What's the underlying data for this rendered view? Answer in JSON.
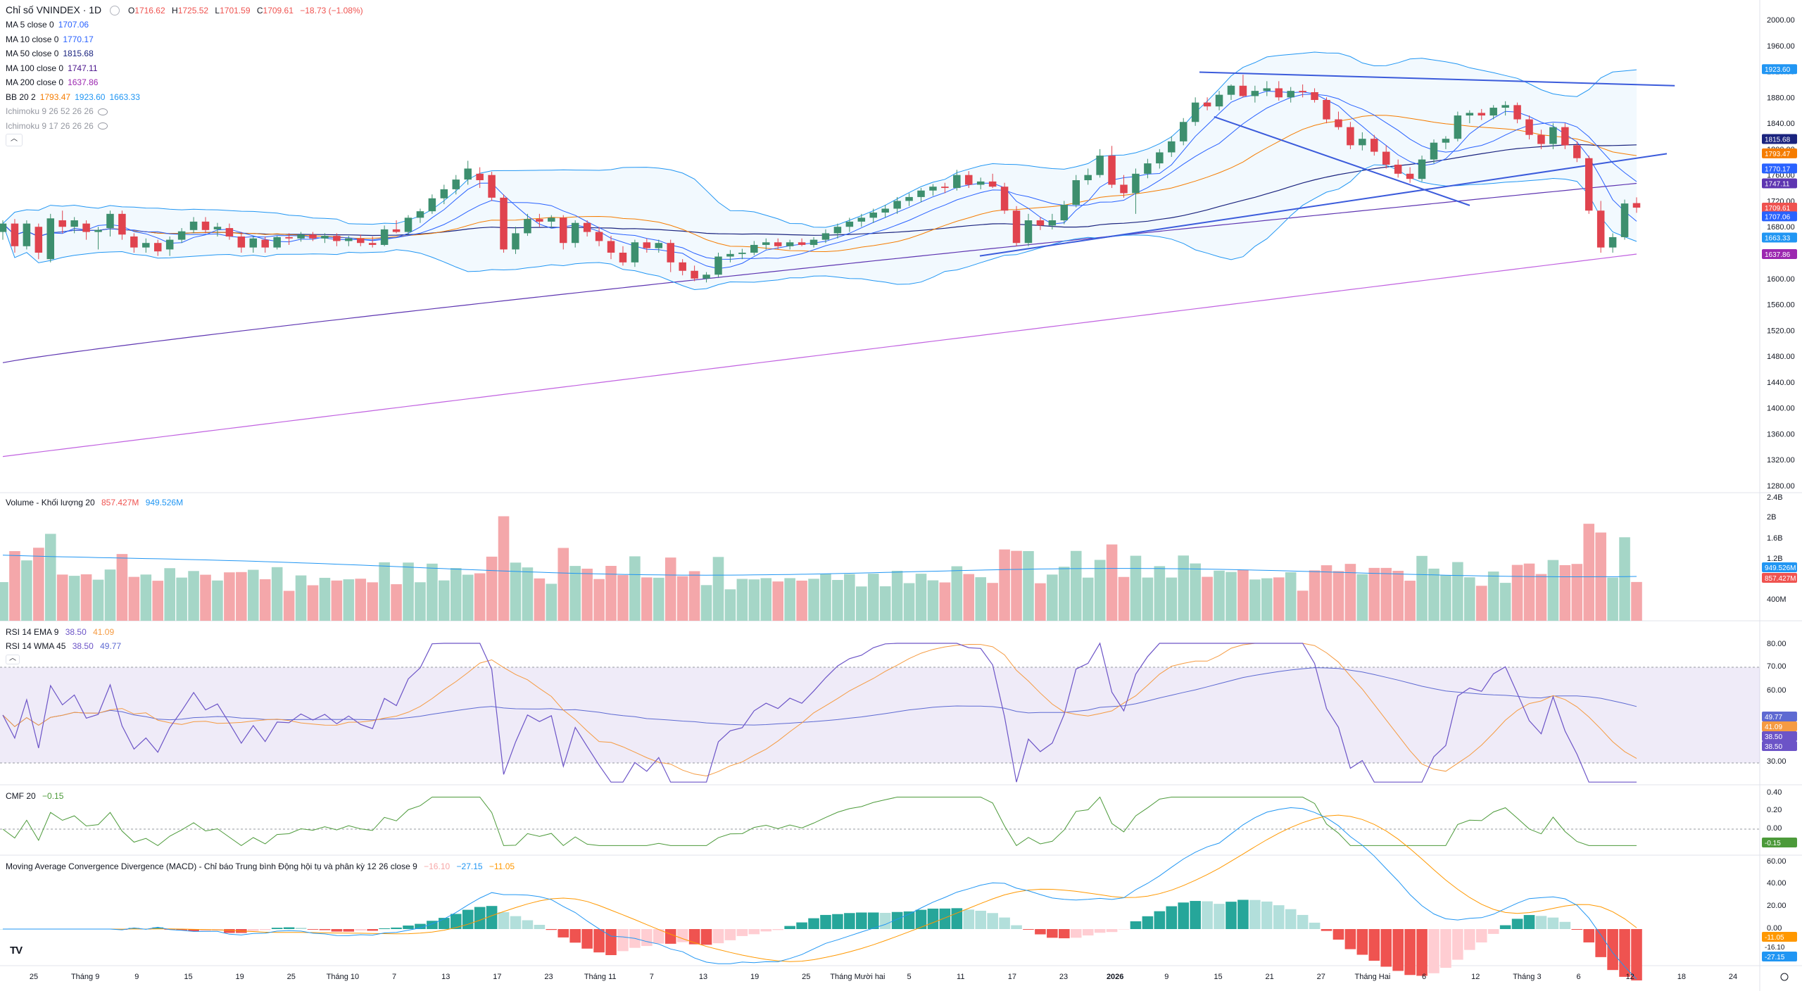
{
  "header": {
    "symbol_title": "Chỉ số VNINDEX · 1D",
    "open_label": "O",
    "open": "1716.62",
    "high_label": "H",
    "high": "1725.52",
    "low_label": "L",
    "low": "1701.59",
    "close_label": "C",
    "close": "1709.61",
    "change": "−18.73 (−1.08%)"
  },
  "indicators": [
    {
      "name": "MA 5 close 0",
      "values": [
        "1707.06"
      ],
      "colors": [
        "#2962ff"
      ]
    },
    {
      "name": "MA 10 close 0",
      "values": [
        "1770.17"
      ],
      "colors": [
        "#2962ff"
      ]
    },
    {
      "name": "MA 50 close 0",
      "values": [
        "1815.68"
      ],
      "colors": [
        "#1a237e"
      ]
    },
    {
      "name": "MA 100 close 0",
      "values": [
        "1747.11"
      ],
      "colors": [
        "#4a148c"
      ]
    },
    {
      "name": "MA 200 close 0",
      "values": [
        "1637.86"
      ],
      "colors": [
        "#9c27b0"
      ]
    },
    {
      "name": "BB 20 2",
      "values": [
        "1793.47",
        "1923.60",
        "1663.33"
      ],
      "colors": [
        "#f57c00",
        "#2196f3",
        "#2196f3"
      ]
    },
    {
      "name": "Ichimoku 9 26 52 26 26",
      "values": [],
      "colors": [],
      "hidden": true
    },
    {
      "name": "Ichimoku 9 17 26 26 26",
      "values": [],
      "colors": [],
      "hidden": true
    }
  ],
  "panes": {
    "volume": {
      "label": "Volume - Khối lượng 20",
      "v1": "857.427M",
      "v2": "949.526M"
    },
    "rsi1": {
      "label": "RSI 14 EMA 9",
      "v1": "38.50",
      "v2": "41.09"
    },
    "rsi2": {
      "label": "RSI 14 WMA 45",
      "v1": "38.50",
      "v2": "49.77"
    },
    "cmf": {
      "label": "CMF 20",
      "v1": "−0.15"
    },
    "macd": {
      "label": "Moving Average Convergence Divergence (MACD) - Chỉ báo Trung bình Động hội tụ và phân kỳ 12 26 close 9",
      "v1": "−16.10",
      "v2": "−27.15",
      "v3": "−11.05"
    }
  },
  "colors": {
    "up": "#26a69a",
    "down": "#ef5350",
    "up_candle": "#3d8f6e",
    "down_candle": "#e0434e",
    "ma5": "#2962ff",
    "ma10": "#2962ff",
    "ma50": "#1a237e",
    "ma100": "#5e35b1",
    "ma200": "#c162e0",
    "bb_basis": "#f57c00",
    "bb_band": "#2196f3",
    "trend": "#3b5bdb",
    "rsi": "#6c54c7",
    "rsi_ma": "#f59b42",
    "rsi_wma": "#5e6ad2",
    "cmf": "#4c9a3a",
    "macd": "#2196f3",
    "signal": "#ff9800"
  },
  "price_axis": {
    "labels": [
      "2000.00",
      "1960.00",
      "1920.00",
      "1880.00",
      "1840.00",
      "1800.00",
      "1760.00",
      "1720.00",
      "1680.00",
      "1640.00",
      "1600.00",
      "1560.00",
      "1520.00",
      "1480.00",
      "1440.00",
      "1400.00",
      "1360.00",
      "1320.00",
      "1280.00"
    ],
    "tags": [
      {
        "text": "1923.60",
        "bg": "#2196f3"
      },
      {
        "text": "1815.68",
        "bg": "#1a237e"
      },
      {
        "text": "1793.47",
        "bg": "#f57c00"
      },
      {
        "text": "1770.17",
        "bg": "#2962ff"
      },
      {
        "text": "1747.11",
        "bg": "#5e35b1"
      },
      {
        "text": "1709.61",
        "bg": "#ef5350"
      },
      {
        "text": "1707.06",
        "bg": "#2962ff"
      },
      {
        "text": "1663.33",
        "bg": "#2196f3"
      },
      {
        "text": "1637.86",
        "bg": "#9c27b0"
      }
    ]
  },
  "volume_axis": {
    "labels": [
      "2.4B",
      "2B",
      "1.6B",
      "1.2B",
      "400M"
    ],
    "tags": [
      {
        "text": "949.526M",
        "bg": "#2196f3"
      },
      {
        "text": "857.427M",
        "bg": "#ef5350"
      }
    ]
  },
  "rsi_axis": {
    "labels": [
      "80.00",
      "70.00",
      "60.00",
      "30.00"
    ],
    "tags": [
      {
        "text": "49.77",
        "bg": "#5e6ad2"
      },
      {
        "text": "41.09",
        "bg": "#f59b42"
      },
      {
        "text": "38.50",
        "bg": "#6c54c7"
      },
      {
        "text": "38.50",
        "bg": "#6c54c7"
      }
    ]
  },
  "cmf_axis": {
    "labels": [
      "0.40",
      "0.20",
      "0.00"
    ],
    "tags": [
      {
        "text": "-0.15",
        "bg": "#4c9a3a"
      }
    ]
  },
  "macd_axis": {
    "labels": [
      "60.00",
      "40.00",
      "20.00",
      "0.00"
    ],
    "tags": [
      {
        "text": "-11.05",
        "bg": "#ff9800"
      },
      {
        "text": "-16.10",
        "bg": "#ffffff"
      },
      {
        "text": "-27.15",
        "bg": "#2196f3"
      }
    ]
  },
  "time_axis": {
    "labels": [
      "25",
      "Tháng 9",
      "9",
      "15",
      "19",
      "25",
      "Tháng 10",
      "7",
      "13",
      "17",
      "23",
      "Tháng 11",
      "7",
      "13",
      "19",
      "25",
      "Tháng Mười hai",
      "5",
      "11",
      "17",
      "23",
      "2026",
      "9",
      "15",
      "21",
      "27",
      "Tháng Hai",
      "6",
      "12",
      "Tháng 3",
      "6",
      "12",
      "18",
      "24"
    ],
    "bold": [
      "2026"
    ]
  },
  "chart_data": {
    "type": "candlestick",
    "title": "Chỉ số VNINDEX · 1D",
    "ylim": [
      1240,
      2020
    ],
    "candles": [
      {
        "o": 1672,
        "h": 1690,
        "l": 1660,
        "c": 1685
      },
      {
        "o": 1685,
        "h": 1692,
        "l": 1640,
        "c": 1650
      },
      {
        "o": 1650,
        "h": 1690,
        "l": 1645,
        "c": 1685
      },
      {
        "o": 1680,
        "h": 1685,
        "l": 1630,
        "c": 1640
      },
      {
        "o": 1630,
        "h": 1700,
        "l": 1625,
        "c": 1693
      },
      {
        "o": 1690,
        "h": 1705,
        "l": 1670,
        "c": 1680
      },
      {
        "o": 1680,
        "h": 1695,
        "l": 1670,
        "c": 1690
      },
      {
        "o": 1685,
        "h": 1690,
        "l": 1660,
        "c": 1672
      },
      {
        "o": 1672,
        "h": 1680,
        "l": 1645,
        "c": 1675
      },
      {
        "o": 1678,
        "h": 1705,
        "l": 1665,
        "c": 1700
      },
      {
        "o": 1700,
        "h": 1705,
        "l": 1660,
        "c": 1668
      },
      {
        "o": 1665,
        "h": 1670,
        "l": 1640,
        "c": 1648
      },
      {
        "o": 1648,
        "h": 1662,
        "l": 1640,
        "c": 1655
      },
      {
        "o": 1655,
        "h": 1660,
        "l": 1635,
        "c": 1642
      },
      {
        "o": 1645,
        "h": 1665,
        "l": 1635,
        "c": 1660
      },
      {
        "o": 1660,
        "h": 1678,
        "l": 1655,
        "c": 1673
      },
      {
        "o": 1675,
        "h": 1695,
        "l": 1670,
        "c": 1688
      },
      {
        "o": 1688,
        "h": 1695,
        "l": 1670,
        "c": 1675
      },
      {
        "o": 1676,
        "h": 1686,
        "l": 1665,
        "c": 1680
      },
      {
        "o": 1678,
        "h": 1685,
        "l": 1660,
        "c": 1665
      },
      {
        "o": 1665,
        "h": 1672,
        "l": 1640,
        "c": 1648
      },
      {
        "o": 1648,
        "h": 1666,
        "l": 1640,
        "c": 1662
      },
      {
        "o": 1660,
        "h": 1665,
        "l": 1640,
        "c": 1648
      },
      {
        "o": 1648,
        "h": 1666,
        "l": 1645,
        "c": 1664
      },
      {
        "o": 1664,
        "h": 1670,
        "l": 1652,
        "c": 1662
      },
      {
        "o": 1662,
        "h": 1672,
        "l": 1657,
        "c": 1668
      },
      {
        "o": 1668,
        "h": 1672,
        "l": 1658,
        "c": 1662
      },
      {
        "o": 1662,
        "h": 1670,
        "l": 1655,
        "c": 1666
      },
      {
        "o": 1666,
        "h": 1670,
        "l": 1650,
        "c": 1658
      },
      {
        "o": 1658,
        "h": 1666,
        "l": 1650,
        "c": 1662
      },
      {
        "o": 1662,
        "h": 1668,
        "l": 1650,
        "c": 1655
      },
      {
        "o": 1655,
        "h": 1665,
        "l": 1648,
        "c": 1652
      },
      {
        "o": 1652,
        "h": 1682,
        "l": 1650,
        "c": 1676
      },
      {
        "o": 1676,
        "h": 1690,
        "l": 1670,
        "c": 1672
      },
      {
        "o": 1672,
        "h": 1698,
        "l": 1668,
        "c": 1694
      },
      {
        "o": 1694,
        "h": 1708,
        "l": 1686,
        "c": 1704
      },
      {
        "o": 1704,
        "h": 1730,
        "l": 1700,
        "c": 1724
      },
      {
        "o": 1724,
        "h": 1745,
        "l": 1715,
        "c": 1738
      },
      {
        "o": 1738,
        "h": 1760,
        "l": 1730,
        "c": 1753
      },
      {
        "o": 1753,
        "h": 1782,
        "l": 1745,
        "c": 1770
      },
      {
        "o": 1762,
        "h": 1772,
        "l": 1740,
        "c": 1752
      },
      {
        "o": 1760,
        "h": 1765,
        "l": 1720,
        "c": 1725
      },
      {
        "o": 1725,
        "h": 1730,
        "l": 1640,
        "c": 1645
      },
      {
        "o": 1645,
        "h": 1680,
        "l": 1638,
        "c": 1670
      },
      {
        "o": 1670,
        "h": 1700,
        "l": 1666,
        "c": 1692
      },
      {
        "o": 1692,
        "h": 1700,
        "l": 1680,
        "c": 1688
      },
      {
        "o": 1688,
        "h": 1698,
        "l": 1678,
        "c": 1694
      },
      {
        "o": 1694,
        "h": 1698,
        "l": 1645,
        "c": 1655
      },
      {
        "o": 1655,
        "h": 1690,
        "l": 1648,
        "c": 1686
      },
      {
        "o": 1686,
        "h": 1690,
        "l": 1665,
        "c": 1672
      },
      {
        "o": 1672,
        "h": 1680,
        "l": 1650,
        "c": 1658
      },
      {
        "o": 1658,
        "h": 1666,
        "l": 1630,
        "c": 1640
      },
      {
        "o": 1640,
        "h": 1650,
        "l": 1620,
        "c": 1625
      },
      {
        "o": 1625,
        "h": 1660,
        "l": 1618,
        "c": 1656
      },
      {
        "o": 1656,
        "h": 1662,
        "l": 1640,
        "c": 1647
      },
      {
        "o": 1647,
        "h": 1660,
        "l": 1640,
        "c": 1655
      },
      {
        "o": 1655,
        "h": 1660,
        "l": 1610,
        "c": 1625
      },
      {
        "o": 1625,
        "h": 1630,
        "l": 1605,
        "c": 1612
      },
      {
        "o": 1612,
        "h": 1620,
        "l": 1596,
        "c": 1600
      },
      {
        "o": 1600,
        "h": 1610,
        "l": 1594,
        "c": 1606
      },
      {
        "o": 1606,
        "h": 1640,
        "l": 1602,
        "c": 1634
      },
      {
        "o": 1634,
        "h": 1644,
        "l": 1625,
        "c": 1638
      },
      {
        "o": 1638,
        "h": 1646,
        "l": 1630,
        "c": 1640
      },
      {
        "o": 1640,
        "h": 1658,
        "l": 1636,
        "c": 1652
      },
      {
        "o": 1652,
        "h": 1662,
        "l": 1645,
        "c": 1656
      },
      {
        "o": 1656,
        "h": 1662,
        "l": 1645,
        "c": 1650
      },
      {
        "o": 1650,
        "h": 1660,
        "l": 1645,
        "c": 1656
      },
      {
        "o": 1656,
        "h": 1662,
        "l": 1650,
        "c": 1652
      },
      {
        "o": 1652,
        "h": 1664,
        "l": 1648,
        "c": 1660
      },
      {
        "o": 1660,
        "h": 1676,
        "l": 1655,
        "c": 1670
      },
      {
        "o": 1670,
        "h": 1685,
        "l": 1662,
        "c": 1680
      },
      {
        "o": 1680,
        "h": 1694,
        "l": 1672,
        "c": 1688
      },
      {
        "o": 1688,
        "h": 1700,
        "l": 1680,
        "c": 1694
      },
      {
        "o": 1694,
        "h": 1708,
        "l": 1686,
        "c": 1702
      },
      {
        "o": 1702,
        "h": 1714,
        "l": 1694,
        "c": 1708
      },
      {
        "o": 1708,
        "h": 1726,
        "l": 1700,
        "c": 1720
      },
      {
        "o": 1720,
        "h": 1732,
        "l": 1712,
        "c": 1726
      },
      {
        "o": 1726,
        "h": 1740,
        "l": 1718,
        "c": 1736
      },
      {
        "o": 1736,
        "h": 1746,
        "l": 1728,
        "c": 1742
      },
      {
        "o": 1742,
        "h": 1748,
        "l": 1732,
        "c": 1740
      },
      {
        "o": 1740,
        "h": 1768,
        "l": 1736,
        "c": 1760
      },
      {
        "o": 1760,
        "h": 1766,
        "l": 1740,
        "c": 1745
      },
      {
        "o": 1745,
        "h": 1756,
        "l": 1738,
        "c": 1750
      },
      {
        "o": 1750,
        "h": 1762,
        "l": 1740,
        "c": 1742
      },
      {
        "o": 1742,
        "h": 1748,
        "l": 1700,
        "c": 1705
      },
      {
        "o": 1705,
        "h": 1712,
        "l": 1650,
        "c": 1655
      },
      {
        "o": 1655,
        "h": 1700,
        "l": 1650,
        "c": 1690
      },
      {
        "o": 1690,
        "h": 1695,
        "l": 1675,
        "c": 1682
      },
      {
        "o": 1682,
        "h": 1700,
        "l": 1676,
        "c": 1690
      },
      {
        "o": 1690,
        "h": 1720,
        "l": 1684,
        "c": 1714
      },
      {
        "o": 1714,
        "h": 1760,
        "l": 1710,
        "c": 1752
      },
      {
        "o": 1752,
        "h": 1770,
        "l": 1745,
        "c": 1760
      },
      {
        "o": 1760,
        "h": 1800,
        "l": 1756,
        "c": 1790
      },
      {
        "o": 1790,
        "h": 1805,
        "l": 1740,
        "c": 1745
      },
      {
        "o": 1745,
        "h": 1760,
        "l": 1725,
        "c": 1732
      },
      {
        "o": 1732,
        "h": 1770,
        "l": 1700,
        "c": 1762
      },
      {
        "o": 1762,
        "h": 1785,
        "l": 1755,
        "c": 1778
      },
      {
        "o": 1778,
        "h": 1800,
        "l": 1770,
        "c": 1795
      },
      {
        "o": 1795,
        "h": 1820,
        "l": 1788,
        "c": 1812
      },
      {
        "o": 1812,
        "h": 1848,
        "l": 1806,
        "c": 1842
      },
      {
        "o": 1842,
        "h": 1880,
        "l": 1836,
        "c": 1872
      },
      {
        "o": 1872,
        "h": 1880,
        "l": 1860,
        "c": 1866
      },
      {
        "o": 1866,
        "h": 1890,
        "l": 1860,
        "c": 1884
      },
      {
        "o": 1884,
        "h": 1900,
        "l": 1876,
        "c": 1898
      },
      {
        "o": 1898,
        "h": 1915,
        "l": 1880,
        "c": 1882
      },
      {
        "o": 1882,
        "h": 1898,
        "l": 1872,
        "c": 1890
      },
      {
        "o": 1890,
        "h": 1905,
        "l": 1882,
        "c": 1894
      },
      {
        "o": 1894,
        "h": 1905,
        "l": 1875,
        "c": 1880
      },
      {
        "o": 1880,
        "h": 1896,
        "l": 1872,
        "c": 1890
      },
      {
        "o": 1890,
        "h": 1900,
        "l": 1880,
        "c": 1888
      },
      {
        "o": 1888,
        "h": 1894,
        "l": 1872,
        "c": 1876
      },
      {
        "o": 1876,
        "h": 1880,
        "l": 1840,
        "c": 1846
      },
      {
        "o": 1846,
        "h": 1858,
        "l": 1830,
        "c": 1834
      },
      {
        "o": 1834,
        "h": 1842,
        "l": 1800,
        "c": 1806
      },
      {
        "o": 1806,
        "h": 1826,
        "l": 1798,
        "c": 1816
      },
      {
        "o": 1816,
        "h": 1822,
        "l": 1790,
        "c": 1796
      },
      {
        "o": 1796,
        "h": 1806,
        "l": 1770,
        "c": 1776
      },
      {
        "o": 1776,
        "h": 1784,
        "l": 1756,
        "c": 1762
      },
      {
        "o": 1762,
        "h": 1772,
        "l": 1748,
        "c": 1754
      },
      {
        "o": 1754,
        "h": 1790,
        "l": 1750,
        "c": 1784
      },
      {
        "o": 1784,
        "h": 1815,
        "l": 1778,
        "c": 1810
      },
      {
        "o": 1810,
        "h": 1820,
        "l": 1800,
        "c": 1816
      },
      {
        "o": 1816,
        "h": 1858,
        "l": 1812,
        "c": 1852
      },
      {
        "o": 1852,
        "h": 1860,
        "l": 1840,
        "c": 1856
      },
      {
        "o": 1856,
        "h": 1862,
        "l": 1845,
        "c": 1852
      },
      {
        "o": 1852,
        "h": 1868,
        "l": 1846,
        "c": 1864
      },
      {
        "o": 1864,
        "h": 1874,
        "l": 1852,
        "c": 1868
      },
      {
        "o": 1868,
        "h": 1872,
        "l": 1840,
        "c": 1846
      },
      {
        "o": 1846,
        "h": 1852,
        "l": 1815,
        "c": 1822
      },
      {
        "o": 1822,
        "h": 1830,
        "l": 1800,
        "c": 1808
      },
      {
        "o": 1808,
        "h": 1840,
        "l": 1800,
        "c": 1834
      },
      {
        "o": 1834,
        "h": 1840,
        "l": 1800,
        "c": 1806
      },
      {
        "o": 1806,
        "h": 1812,
        "l": 1780,
        "c": 1786
      },
      {
        "o": 1786,
        "h": 1790,
        "l": 1700,
        "c": 1705
      },
      {
        "o": 1705,
        "h": 1720,
        "l": 1640,
        "c": 1648
      },
      {
        "o": 1648,
        "h": 1670,
        "l": 1640,
        "c": 1664
      },
      {
        "o": 1664,
        "h": 1722,
        "l": 1660,
        "c": 1716
      },
      {
        "o": 1716.62,
        "h": 1725.52,
        "l": 1701.59,
        "c": 1709.61
      }
    ],
    "series": [
      {
        "name": "MA 5 close 0",
        "last": 1707.06
      },
      {
        "name": "MA 10 close 0",
        "last": 1770.17
      },
      {
        "name": "MA 50 close 0",
        "last": 1815.68
      },
      {
        "name": "MA 100 close 0",
        "last": 1747.11
      },
      {
        "name": "MA 200 close 0",
        "last": 1637.86
      },
      {
        "name": "BB 20 2",
        "basis": 1793.47,
        "upper": 1923.6,
        "lower": 1663.33
      }
    ],
    "trendlines": [
      {
        "from": [
          1065,
          1919
        ],
        "to": [
          1487,
          1898
        ]
      },
      {
        "from": [
          870,
          1635
        ],
        "to": [
          1480,
          1793
        ]
      },
      {
        "from": [
          1078,
          1850
        ],
        "to": [
          1305,
          1713
        ]
      }
    ],
    "volume_ma": 949.526,
    "volume_last": 857.427,
    "rsi_range": [
      30,
      70
    ],
    "rsi_last": 38.5,
    "rsi_ema": 41.09,
    "rsi_wma": 49.77,
    "cmf_last": -0.15,
    "macd_last": -27.15,
    "signal_last": -11.05,
    "histogram_last": -16.1
  }
}
